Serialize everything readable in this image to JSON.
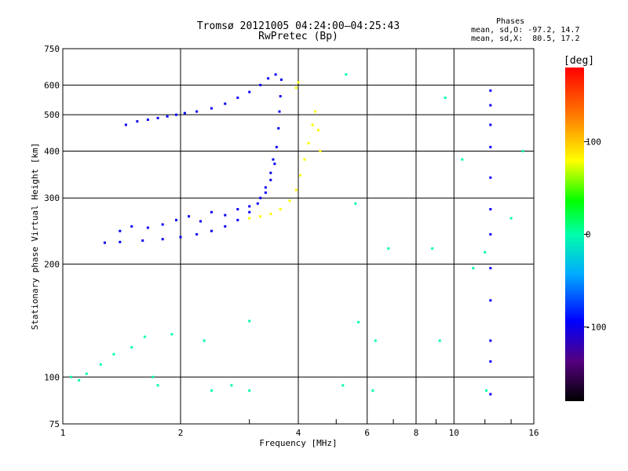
{
  "title_line1": "Tromsø 20121005 04:24:00–04:25:43",
  "title_line2": "RwPretec (Bp)",
  "phases": {
    "heading": "Phases",
    "o_mode": "mean, sd,O: -97.2, 14.7",
    "x_mode": "mean, sd,X:  80.5, 17.2"
  },
  "colorbar": {
    "label": "[deg]",
    "ticks": [
      100,
      0,
      -100
    ],
    "range": [
      -180,
      180
    ]
  },
  "chart_data": {
    "type": "scatter",
    "xlabel": "Frequency [MHz]",
    "ylabel": "Stationary phase Virtual Height [km]",
    "xscale": "log",
    "yscale": "log",
    "xlim": [
      1,
      16
    ],
    "ylim": [
      75,
      750
    ],
    "xticks": [
      1,
      2,
      4,
      6,
      8,
      10,
      16
    ],
    "yticks": [
      75,
      100,
      200,
      300,
      400,
      500,
      600,
      750
    ],
    "grid": true,
    "series": [
      {
        "name": "O-mode trace",
        "color_value": -97,
        "points": [
          [
            1.28,
            228
          ],
          [
            1.4,
            229
          ],
          [
            1.6,
            231
          ],
          [
            1.8,
            233
          ],
          [
            2.0,
            236
          ],
          [
            2.2,
            240
          ],
          [
            2.4,
            245
          ],
          [
            2.6,
            252
          ],
          [
            2.8,
            262
          ],
          [
            3.0,
            275
          ],
          [
            3.15,
            290
          ],
          [
            3.3,
            310
          ],
          [
            3.4,
            335
          ],
          [
            3.48,
            370
          ],
          [
            3.52,
            410
          ],
          [
            3.56,
            460
          ],
          [
            3.58,
            510
          ],
          [
            3.6,
            560
          ],
          [
            3.62,
            620
          ],
          [
            1.4,
            245
          ],
          [
            1.5,
            252
          ],
          [
            1.65,
            250
          ],
          [
            1.8,
            255
          ],
          [
            1.95,
            262
          ],
          [
            2.1,
            268
          ],
          [
            2.25,
            260
          ],
          [
            2.4,
            275
          ],
          [
            2.6,
            270
          ],
          [
            2.8,
            280
          ],
          [
            3.0,
            285
          ],
          [
            3.2,
            300
          ],
          [
            3.3,
            320
          ],
          [
            3.4,
            350
          ],
          [
            3.45,
            380
          ],
          [
            1.45,
            470
          ],
          [
            1.55,
            480
          ],
          [
            1.65,
            485
          ],
          [
            1.75,
            490
          ],
          [
            1.85,
            495
          ],
          [
            1.95,
            500
          ],
          [
            2.05,
            505
          ],
          [
            2.2,
            510
          ],
          [
            2.4,
            520
          ],
          [
            2.6,
            535
          ],
          [
            2.8,
            555
          ],
          [
            3.0,
            575
          ],
          [
            3.2,
            600
          ],
          [
            3.35,
            625
          ],
          [
            3.5,
            640
          ]
        ]
      },
      {
        "name": "X-mode trace",
        "color_value": 80,
        "points": [
          [
            3.0,
            265
          ],
          [
            3.2,
            268
          ],
          [
            3.4,
            272
          ],
          [
            3.6,
            280
          ],
          [
            3.8,
            295
          ],
          [
            3.95,
            315
          ],
          [
            4.05,
            345
          ],
          [
            4.15,
            380
          ],
          [
            4.25,
            420
          ],
          [
            4.35,
            470
          ],
          [
            4.42,
            510
          ],
          [
            4.5,
            455
          ],
          [
            4.55,
            400
          ],
          [
            3.95,
            590
          ],
          [
            4.0,
            610
          ]
        ]
      },
      {
        "name": "scattered",
        "color_value": 0,
        "points": [
          [
            1.05,
            100
          ],
          [
            1.1,
            98
          ],
          [
            1.15,
            102
          ],
          [
            1.25,
            108
          ],
          [
            1.35,
            115
          ],
          [
            1.5,
            120
          ],
          [
            1.62,
            128
          ],
          [
            1.7,
            100
          ],
          [
            1.75,
            95
          ],
          [
            1.9,
            130
          ],
          [
            2.3,
            125
          ],
          [
            2.4,
            92
          ],
          [
            2.7,
            95
          ],
          [
            3.0,
            92
          ],
          [
            3.0,
            141
          ],
          [
            5.2,
            95
          ],
          [
            6.2,
            92
          ],
          [
            6.3,
            125
          ],
          [
            6.8,
            220
          ],
          [
            8.8,
            220
          ],
          [
            9.5,
            555
          ],
          [
            9.2,
            125
          ],
          [
            10.5,
            380
          ],
          [
            11.2,
            195
          ],
          [
            12.0,
            215
          ],
          [
            12.1,
            92
          ],
          [
            14.0,
            265
          ],
          [
            15.0,
            400
          ],
          [
            5.3,
            640
          ],
          [
            5.6,
            290
          ],
          [
            5.7,
            140
          ]
        ]
      },
      {
        "name": "vertical band 12.4 MHz",
        "color_value": -95,
        "points": [
          [
            12.4,
            90
          ],
          [
            12.4,
            110
          ],
          [
            12.4,
            125
          ],
          [
            12.4,
            160
          ],
          [
            12.4,
            195
          ],
          [
            12.4,
            240
          ],
          [
            12.4,
            280
          ],
          [
            12.4,
            340
          ],
          [
            12.4,
            410
          ],
          [
            12.4,
            470
          ],
          [
            12.4,
            530
          ],
          [
            12.4,
            580
          ]
        ]
      }
    ]
  }
}
